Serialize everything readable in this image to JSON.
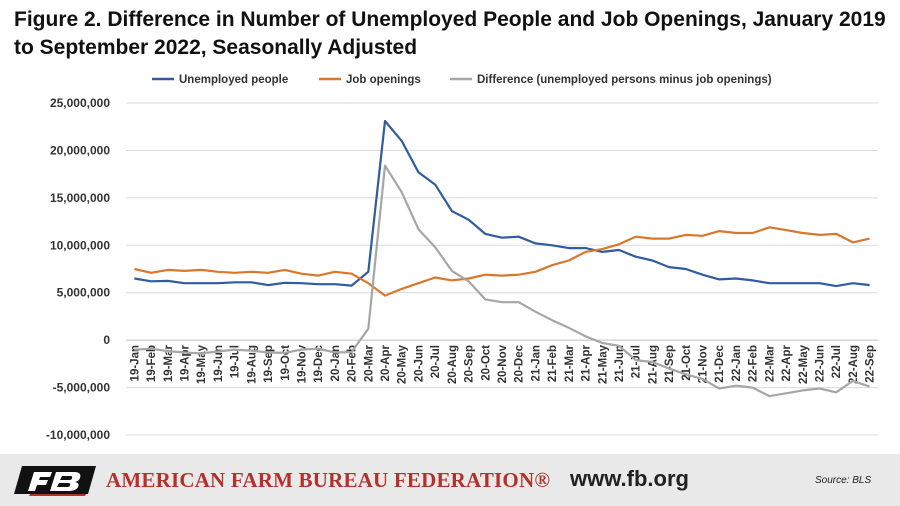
{
  "title": "Figure 2. Difference in Number of Unemployed People and Job Openings, January 2019 to September 2022, Seasonally Adjusted",
  "footer": {
    "organization": "AMERICAN FARM BUREAU FEDERATION®",
    "website": "www.fb.org",
    "source": "Source: BLS",
    "logo_text": "FB"
  },
  "colors": {
    "unemployed": "#2e5c9e",
    "openings": "#d9772b",
    "difference": "#a6a6a6",
    "grid": "#d9d9d9",
    "brand_red": "#b3312b"
  },
  "chart_data": {
    "type": "line",
    "title": "",
    "legend_position": "top",
    "grid": true,
    "ylim": [
      -10000000,
      25000000
    ],
    "yticks": [
      25000000,
      20000000,
      15000000,
      10000000,
      5000000,
      0,
      -5000000,
      -10000000
    ],
    "ytick_labels": [
      "25,000,000",
      "20,000,000",
      "15,000,000",
      "10,000,000",
      "5,000,000",
      "0",
      "-5,000,000",
      "-10,000,000"
    ],
    "x": [
      "19-Jan",
      "19-Feb",
      "19-Mar",
      "19-Apr",
      "19-May",
      "19-Jun",
      "19-Jul",
      "19-Aug",
      "19-Sep",
      "19-Oct",
      "19-Nov",
      "19-Dec",
      "20-Jan",
      "20-Feb",
      "20-Mar",
      "20-Apr",
      "20-May",
      "20-Jun",
      "20-Jul",
      "20-Aug",
      "20-Sep",
      "20-Oct",
      "20-Nov",
      "20-Dec",
      "21-Jan",
      "21-Feb",
      "21-Mar",
      "21-Apr",
      "21-May",
      "21-Jun",
      "21-Jul",
      "21-Aug",
      "21-Sep",
      "21-Oct",
      "21-Nov",
      "21-Dec",
      "22-Jan",
      "22-Feb",
      "22-Mar",
      "22-Apr",
      "22-May",
      "22-Jun",
      "22-Jul",
      "22-Aug",
      "22-Sep"
    ],
    "series": [
      {
        "name": "Unemployed people",
        "color": "#2e5c9e",
        "values": [
          6500000,
          6200000,
          6250000,
          6000000,
          6000000,
          6000000,
          6100000,
          6100000,
          5800000,
          6050000,
          6000000,
          5900000,
          5900000,
          5750000,
          7200000,
          23100000,
          21000000,
          17700000,
          16400000,
          13600000,
          12700000,
          11200000,
          10800000,
          10900000,
          10200000,
          10000000,
          9700000,
          9700000,
          9300000,
          9500000,
          8800000,
          8400000,
          7700000,
          7500000,
          6900000,
          6400000,
          6500000,
          6300000,
          6000000,
          6000000,
          6000000,
          6000000,
          5700000,
          6000000,
          5800000
        ]
      },
      {
        "name": "Job openings",
        "color": "#d9772b",
        "values": [
          7500000,
          7100000,
          7400000,
          7300000,
          7400000,
          7200000,
          7100000,
          7200000,
          7100000,
          7400000,
          7000000,
          6800000,
          7200000,
          7000000,
          6000000,
          4700000,
          5400000,
          6000000,
          6600000,
          6300000,
          6500000,
          6900000,
          6800000,
          6900000,
          7200000,
          7900000,
          8400000,
          9300000,
          9600000,
          10100000,
          10900000,
          10700000,
          10700000,
          11100000,
          11000000,
          11500000,
          11300000,
          11300000,
          11900000,
          11600000,
          11300000,
          11100000,
          11200000,
          10300000,
          10700000
        ]
      },
      {
        "name": "Difference (unemployed persons minus job openings)",
        "color": "#a6a6a6",
        "values": [
          -1000000,
          -900000,
          -1150000,
          -1300000,
          -1400000,
          -1200000,
          -1000000,
          -1100000,
          -1300000,
          -1350000,
          -1000000,
          -900000,
          -1300000,
          -1250000,
          1200000,
          18400000,
          15600000,
          11700000,
          9800000,
          7300000,
          6200000,
          4300000,
          4000000,
          4000000,
          3000000,
          2100000,
          1300000,
          400000,
          -300000,
          -600000,
          -2100000,
          -2300000,
          -3000000,
          -3600000,
          -4100000,
          -5100000,
          -4800000,
          -5000000,
          -5900000,
          -5600000,
          -5300000,
          -5100000,
          -5500000,
          -4300000,
          -4900000
        ]
      }
    ]
  }
}
